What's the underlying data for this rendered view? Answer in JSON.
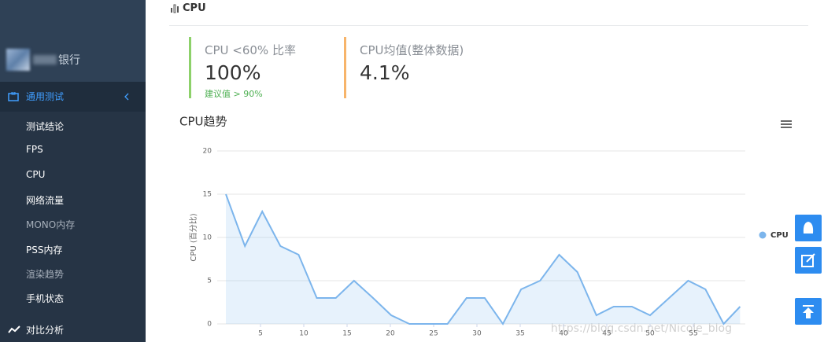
{
  "sidebar": {
    "brand": "银行",
    "group": "通用测试",
    "items": [
      "测试结论",
      "FPS",
      "CPU",
      "网络流量",
      "MONO内存",
      "PSS内存",
      "渲染趋势",
      "手机状态"
    ],
    "next_group": "对比分析"
  },
  "header": {
    "title": "CPU"
  },
  "stats": [
    {
      "label": "CPU <60% 比率",
      "value": "100%",
      "note": "建议值 > 90%"
    },
    {
      "label": "CPU均值(整体数据)",
      "value": "4.1%"
    }
  ],
  "chart_data": {
    "type": "line",
    "title": "CPU趋势",
    "y_label": "CPU (百分比)",
    "x": [
      1,
      3.2,
      5.2,
      7.3,
      9.4,
      11.5,
      13.7,
      15.8,
      18,
      20.1,
      22.2,
      24.5,
      26.6,
      28.8,
      30.9,
      33,
      35.1,
      37.3,
      39.5,
      41.6,
      43.8,
      45.8,
      47.9,
      50,
      52.2,
      54.4,
      56.4,
      58.5,
      60.4
    ],
    "series": [
      {
        "name": "CPU",
        "color": "#7cb5ec",
        "values": [
          15,
          9,
          13,
          9,
          8,
          3,
          3,
          5,
          3,
          1,
          0,
          0,
          0,
          3,
          3,
          0,
          4,
          5,
          8,
          6,
          1,
          2,
          2,
          1,
          3,
          5,
          4,
          0,
          2
        ]
      }
    ],
    "xlim": [
      0,
      61
    ],
    "ylim": [
      0,
      20
    ],
    "xticks": [
      5,
      10,
      15,
      20,
      25,
      30,
      35,
      40,
      45,
      50,
      55
    ],
    "yticks": [
      0,
      5,
      10,
      15,
      20
    ],
    "grid": true,
    "legend": "right"
  },
  "watermark": "https://blog.csdn.net/Nicole_blog"
}
